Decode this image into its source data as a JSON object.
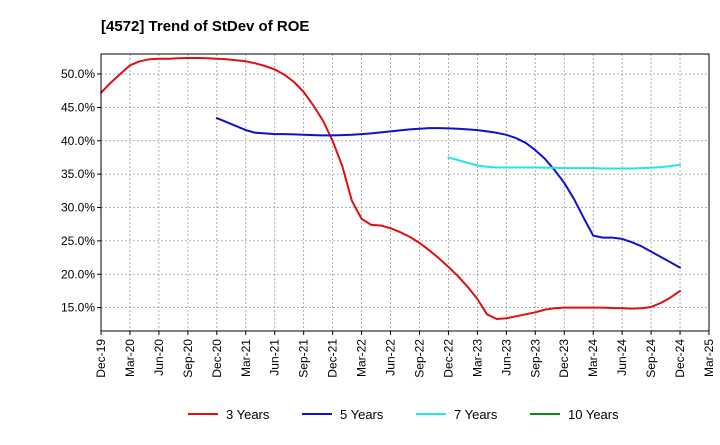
{
  "chart_data": {
    "type": "line",
    "title": "[4572]  Trend of StDev of ROE",
    "xlabel": "",
    "ylabel": "",
    "x_ticks": [
      "Dec-19",
      "Mar-20",
      "Jun-20",
      "Sep-20",
      "Dec-20",
      "Mar-21",
      "Jun-21",
      "Sep-21",
      "Dec-21",
      "Mar-22",
      "Jun-22",
      "Sep-22",
      "Dec-22",
      "Mar-23",
      "Jun-23",
      "Sep-23",
      "Dec-23",
      "Mar-24",
      "Jun-24",
      "Sep-24",
      "Dec-24",
      "Mar-25"
    ],
    "y_ticks": [
      "15.0%",
      "20.0%",
      "25.0%",
      "30.0%",
      "35.0%",
      "40.0%",
      "45.0%",
      "50.0%"
    ],
    "y_tick_values": [
      15,
      20,
      25,
      30,
      35,
      40,
      45,
      50
    ],
    "ylim": [
      11.5,
      53.0
    ],
    "grid": true,
    "legend_position": "bottom",
    "series": [
      {
        "name": "3 Years",
        "color": "#dd1111",
        "points": [
          [
            "Dec-19",
            47.2
          ],
          [
            "Jan-20",
            48.7
          ],
          [
            "Feb-20",
            50.0
          ],
          [
            "Mar-20",
            51.3
          ],
          [
            "Apr-20",
            51.9
          ],
          [
            "May-20",
            52.2
          ],
          [
            "Jun-20",
            52.3
          ],
          [
            "Jul-20",
            52.3
          ],
          [
            "Aug-20",
            52.35
          ],
          [
            "Sep-20",
            52.4
          ],
          [
            "Oct-20",
            52.4
          ],
          [
            "Nov-20",
            52.35
          ],
          [
            "Dec-20",
            52.3
          ],
          [
            "Jan-21",
            52.2
          ],
          [
            "Feb-21",
            52.05
          ],
          [
            "Mar-21",
            51.9
          ],
          [
            "Apr-21",
            51.6
          ],
          [
            "May-21",
            51.2
          ],
          [
            "Jun-21",
            50.7
          ],
          [
            "Jul-21",
            49.9
          ],
          [
            "Aug-21",
            48.8
          ],
          [
            "Sep-21",
            47.3
          ],
          [
            "Oct-21",
            45.3
          ],
          [
            "Nov-21",
            43.0
          ],
          [
            "Dec-21",
            40.0
          ],
          [
            "Jan-22",
            36.2
          ],
          [
            "Feb-22",
            31.0
          ],
          [
            "Mar-22",
            28.3
          ],
          [
            "Apr-22",
            27.4
          ],
          [
            "May-22",
            27.3
          ],
          [
            "Jun-22",
            26.9
          ],
          [
            "Jul-22",
            26.3
          ],
          [
            "Aug-22",
            25.6
          ],
          [
            "Sep-22",
            24.7
          ],
          [
            "Oct-22",
            23.6
          ],
          [
            "Nov-22",
            22.4
          ],
          [
            "Dec-22",
            21.1
          ],
          [
            "Jan-23",
            19.7
          ],
          [
            "Feb-23",
            18.1
          ],
          [
            "Mar-23",
            16.3
          ],
          [
            "Apr-23",
            14.0
          ],
          [
            "May-23",
            13.3
          ],
          [
            "Jun-23",
            13.4
          ],
          [
            "Jul-23",
            13.7
          ],
          [
            "Aug-23",
            14.0
          ],
          [
            "Sep-23",
            14.3
          ],
          [
            "Oct-23",
            14.7
          ],
          [
            "Nov-23",
            14.9
          ],
          [
            "Dec-23",
            15.0
          ],
          [
            "Jan-24",
            15.0
          ],
          [
            "Feb-24",
            15.0
          ],
          [
            "Mar-24",
            15.0
          ],
          [
            "Apr-24",
            15.0
          ],
          [
            "May-24",
            14.95
          ],
          [
            "Jun-24",
            14.9
          ],
          [
            "Jul-24",
            14.85
          ],
          [
            "Aug-24",
            14.9
          ],
          [
            "Sep-24",
            15.1
          ],
          [
            "Oct-24",
            15.7
          ],
          [
            "Nov-24",
            16.5
          ],
          [
            "Dec-24",
            17.5
          ]
        ]
      },
      {
        "name": "5 Years",
        "color": "#1111cc",
        "points": [
          [
            "Dec-20",
            43.4
          ],
          [
            "Jan-21",
            42.8
          ],
          [
            "Feb-21",
            42.2
          ],
          [
            "Mar-21",
            41.6
          ],
          [
            "Apr-21",
            41.2
          ],
          [
            "May-21",
            41.1
          ],
          [
            "Jun-21",
            41.0
          ],
          [
            "Jul-21",
            41.0
          ],
          [
            "Aug-21",
            40.95
          ],
          [
            "Sep-21",
            40.9
          ],
          [
            "Oct-21",
            40.85
          ],
          [
            "Nov-21",
            40.8
          ],
          [
            "Dec-21",
            40.8
          ],
          [
            "Jan-22",
            40.85
          ],
          [
            "Feb-22",
            40.9
          ],
          [
            "Mar-22",
            41.0
          ],
          [
            "Apr-22",
            41.1
          ],
          [
            "May-22",
            41.25
          ],
          [
            "Jun-22",
            41.4
          ],
          [
            "Jul-22",
            41.55
          ],
          [
            "Aug-22",
            41.7
          ],
          [
            "Sep-22",
            41.8
          ],
          [
            "Oct-22",
            41.9
          ],
          [
            "Nov-22",
            41.9
          ],
          [
            "Dec-22",
            41.85
          ],
          [
            "Jan-23",
            41.8
          ],
          [
            "Feb-23",
            41.7
          ],
          [
            "Mar-23",
            41.6
          ],
          [
            "Apr-23",
            41.4
          ],
          [
            "May-23",
            41.2
          ],
          [
            "Jun-23",
            40.9
          ],
          [
            "Jul-23",
            40.4
          ],
          [
            "Aug-23",
            39.7
          ],
          [
            "Sep-23",
            38.6
          ],
          [
            "Oct-23",
            37.3
          ],
          [
            "Nov-23",
            35.6
          ],
          [
            "Dec-23",
            33.7
          ],
          [
            "Jan-24",
            31.3
          ],
          [
            "Feb-24",
            28.5
          ],
          [
            "Mar-24",
            25.8
          ],
          [
            "Apr-24",
            25.5
          ],
          [
            "May-24",
            25.5
          ],
          [
            "Jun-24",
            25.3
          ],
          [
            "Jul-24",
            24.8
          ],
          [
            "Aug-24",
            24.2
          ],
          [
            "Sep-24",
            23.4
          ],
          [
            "Oct-24",
            22.6
          ],
          [
            "Nov-24",
            21.8
          ],
          [
            "Dec-24",
            21.0
          ]
        ]
      },
      {
        "name": "7 Years",
        "color": "#22e5e5",
        "points": [
          [
            "Dec-22",
            37.5
          ],
          [
            "Jan-23",
            37.1
          ],
          [
            "Feb-23",
            36.7
          ],
          [
            "Mar-23",
            36.3
          ],
          [
            "Apr-23",
            36.1
          ],
          [
            "May-23",
            36.0
          ],
          [
            "Jun-23",
            36.0
          ],
          [
            "Jul-23",
            36.0
          ],
          [
            "Aug-23",
            36.0
          ],
          [
            "Sep-23",
            36.0
          ],
          [
            "Oct-23",
            35.95
          ],
          [
            "Nov-23",
            35.95
          ],
          [
            "Dec-23",
            35.9
          ],
          [
            "Jan-24",
            35.9
          ],
          [
            "Feb-24",
            35.9
          ],
          [
            "Mar-24",
            35.9
          ],
          [
            "Apr-24",
            35.85
          ],
          [
            "May-24",
            35.85
          ],
          [
            "Jun-24",
            35.85
          ],
          [
            "Jul-24",
            35.85
          ],
          [
            "Aug-24",
            35.9
          ],
          [
            "Sep-24",
            35.95
          ],
          [
            "Oct-24",
            36.05
          ],
          [
            "Nov-24",
            36.2
          ],
          [
            "Dec-24",
            36.4
          ]
        ]
      },
      {
        "name": "10 Years",
        "color": "#118811",
        "points": []
      }
    ]
  }
}
